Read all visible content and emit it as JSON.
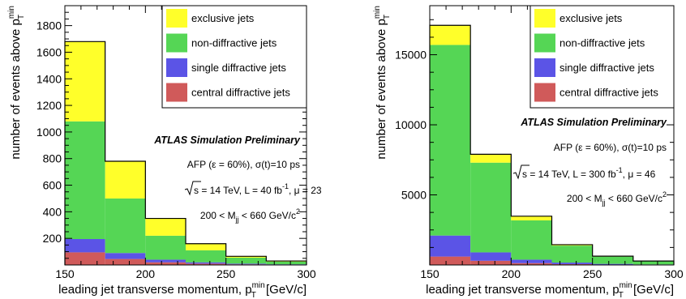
{
  "chart_data": [
    {
      "type": "bar",
      "stacked": true,
      "x_edges": [
        150,
        175,
        200,
        225,
        250,
        275,
        300
      ],
      "xlim": [
        150,
        300
      ],
      "ylim": [
        0,
        1950
      ],
      "x_tick_labels": [
        "150",
        "200",
        "250",
        "300"
      ],
      "x_tick_values": [
        150,
        200,
        250,
        300
      ],
      "y_tick_labels": [
        "200",
        "400",
        "600",
        "800",
        "1000",
        "1200",
        "1400",
        "1600",
        "1800"
      ],
      "y_tick_values": [
        200,
        400,
        600,
        800,
        1000,
        1200,
        1400,
        1600,
        1800
      ],
      "xlabel_main": "leading jet transverse momentum, p",
      "xlabel_sup": "min",
      "xlabel_sub": "T",
      "xlabel_unit": " [GeV/c]",
      "ylabel_main": "number of events above p",
      "ylabel_sup": "min",
      "ylabel_sub": "T",
      "series": [
        {
          "name": "central diffractive jets",
          "color": "#d05a5a",
          "values": [
            95,
            45,
            20,
            10,
            5,
            2
          ]
        },
        {
          "name": "single diffractive jets",
          "color": "#5b54e6",
          "values": [
            100,
            45,
            20,
            10,
            5,
            3
          ]
        },
        {
          "name": "non-diffractive jets",
          "color": "#55d655",
          "values": [
            885,
            410,
            180,
            90,
            45,
            20
          ]
        },
        {
          "name": "exclusive jets",
          "color": "#ffff2a",
          "values": [
            600,
            280,
            130,
            50,
            10,
            5
          ]
        }
      ],
      "annotations": {
        "title": "ATLAS Simulation Preliminary",
        "afp": "AFP (ε = 60%), σ(t)=10 ps",
        "energy_pre": "s = 14 TeV, L = 40 fb",
        "energy_sup": "-1",
        "energy_post": ", μ = 23",
        "mass_pre": "200 < M",
        "mass_sub": "jj",
        "mass_post": " < 660 GeV/c",
        "mass_sup": "2"
      }
    },
    {
      "type": "bar",
      "stacked": true,
      "x_edges": [
        150,
        175,
        200,
        225,
        250,
        275,
        300
      ],
      "xlim": [
        150,
        300
      ],
      "ylim": [
        0,
        18500
      ],
      "x_tick_labels": [
        "150",
        "200",
        "250",
        "300"
      ],
      "x_tick_values": [
        150,
        200,
        250,
        300
      ],
      "y_tick_labels": [
        "5000",
        "10000",
        "15000"
      ],
      "y_tick_values": [
        5000,
        10000,
        15000
      ],
      "xlabel_main": "leading jet transverse momentum, p",
      "xlabel_sup": "min",
      "xlabel_sub": "T",
      "xlabel_unit": " [GeV/c]",
      "ylabel_main": "number of events above p",
      "ylabel_sup": "min",
      "ylabel_sub": "T",
      "series": [
        {
          "name": "central diffractive jets",
          "color": "#d05a5a",
          "values": [
            600,
            300,
            130,
            60,
            30,
            15
          ]
        },
        {
          "name": "single diffractive jets",
          "color": "#5b54e6",
          "values": [
            1500,
            600,
            250,
            110,
            50,
            25
          ]
        },
        {
          "name": "non-diffractive jets",
          "color": "#55d655",
          "values": [
            13600,
            6400,
            2800,
            1210,
            520,
            230
          ]
        },
        {
          "name": "exclusive jets",
          "color": "#ffff2a",
          "values": [
            1400,
            600,
            300,
            70,
            30,
            10
          ]
        }
      ],
      "annotations": {
        "title": "ATLAS Simulation Preliminary",
        "afp": "AFP (ε = 60%), σ(t)=10 ps",
        "energy_pre": "s = 14 TeV, L = 300 fb",
        "energy_sup": "-1",
        "energy_post": ", μ = 46",
        "mass_pre": "200 < M",
        "mass_sub": "jj",
        "mass_post": " < 660 GeV/c",
        "mass_sup": "2"
      }
    }
  ],
  "legend_order": [
    "exclusive jets",
    "non-diffractive jets",
    "single diffractive jets",
    "central diffractive jets"
  ]
}
